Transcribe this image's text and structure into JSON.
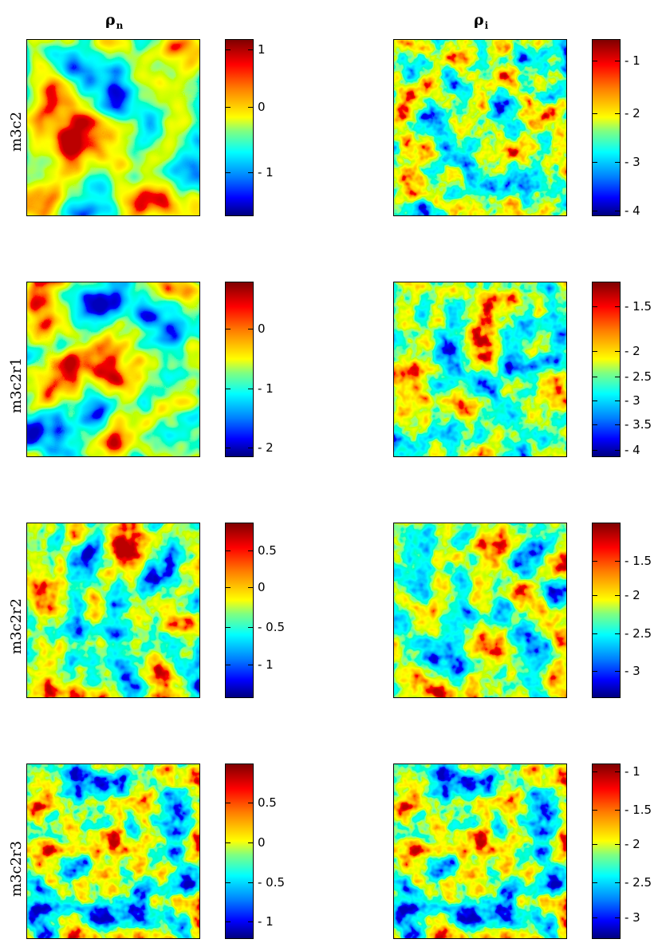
{
  "chart_data": [
    {
      "type": "heatmap",
      "row": "m3c2",
      "column": "ρ_n",
      "colorbar_ticks": [
        1,
        0,
        -1
      ],
      "colormap": "jet"
    },
    {
      "type": "heatmap",
      "row": "m3c2",
      "column": "ρ_i",
      "colorbar_ticks": [
        -1,
        -2,
        -3,
        -4
      ],
      "colormap": "jet"
    },
    {
      "type": "heatmap",
      "row": "m3c2r1",
      "column": "ρ_n",
      "colorbar_ticks": [
        0,
        -1,
        -2
      ],
      "colormap": "jet"
    },
    {
      "type": "heatmap",
      "row": "m3c2r1",
      "column": "ρ_i",
      "colorbar_ticks": [
        -1.5,
        -2,
        -2.5,
        -3,
        -3.5,
        -4
      ],
      "colormap": "jet"
    },
    {
      "type": "heatmap",
      "row": "m3c2r2",
      "column": "ρ_n",
      "colorbar_ticks": [
        0.5,
        0,
        -0.5,
        -1
      ],
      "colormap": "jet"
    },
    {
      "type": "heatmap",
      "row": "m3c2r2",
      "column": "ρ_i",
      "colorbar_ticks": [
        -1.5,
        -2,
        -2.5,
        -3
      ],
      "colormap": "jet"
    },
    {
      "type": "heatmap",
      "row": "m3c2r3",
      "column": "ρ_n",
      "colorbar_ticks": [
        0.5,
        0,
        -0.5,
        -1
      ],
      "colormap": "jet"
    },
    {
      "type": "heatmap",
      "row": "m3c2r3",
      "column": "ρ_i",
      "colorbar_ticks": [
        -1,
        -1.5,
        -2,
        -2.5,
        -3
      ],
      "colormap": "jet"
    }
  ],
  "headers": {
    "left": {
      "symbol": "ρ",
      "sub": "n"
    },
    "right": {
      "symbol": "ρ",
      "sub": "i"
    }
  },
  "rows": [
    "m3c2",
    "m3c2r1",
    "m3c2r2",
    "m3c2r3"
  ],
  "colorbars": [
    {
      "labels": [
        "1",
        "0",
        "- 1"
      ]
    },
    {
      "labels": [
        "- 1",
        "- 2",
        "- 3",
        "- 4"
      ]
    },
    {
      "labels": [
        "0",
        "- 1",
        "- 2"
      ]
    },
    {
      "labels": [
        "- 1.5",
        "- 2",
        "- 2.5",
        "- 3",
        "- 3.5",
        "- 4"
      ]
    },
    {
      "labels": [
        "0.5",
        "0",
        "- 0.5",
        "- 1"
      ]
    },
    {
      "labels": [
        "- 1.5",
        "- 2",
        "- 2.5",
        "- 3"
      ]
    },
    {
      "labels": [
        "0.5",
        "0",
        "- 0.5",
        "- 1"
      ]
    },
    {
      "labels": [
        "- 1",
        "- 1.5",
        "- 2",
        "- 2.5",
        "- 3"
      ]
    }
  ],
  "colors": {
    "background": "#ffffff",
    "axis": "#000000"
  }
}
